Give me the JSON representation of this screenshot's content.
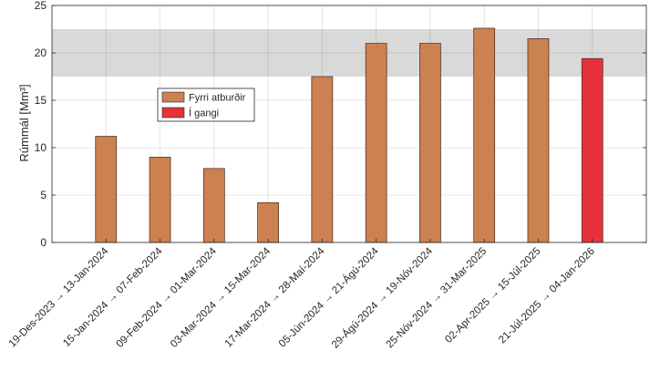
{
  "chart_data": {
    "type": "bar",
    "categories": [
      "19-Des-2023 → 13-Jan-2024",
      "15-Jan-2024 → 07-Feb-2024",
      "09-Feb-2024 → 01-Mar-2024",
      "03-Mar-2024 → 15-Mar-2024",
      "17-Mar-2024 → 28-Maí-2024",
      "05-Jún-2024 → 21-Ágú-2024",
      "29-Ágú-2024 → 19-Nóv-2024",
      "25-Nóv-2024 → 31-Mar-2025",
      "02-Apr-2025 → 15-Júl-2025",
      "21-Júl-2025 → 04-Jan-2026"
    ],
    "series": [
      {
        "name": "Fyrri atburðir",
        "color": "#cc8150",
        "values": [
          11.2,
          9.0,
          7.8,
          4.2,
          17.5,
          21.0,
          21.0,
          22.6,
          21.5,
          null
        ]
      },
      {
        "name": "Í gangi",
        "color": "#e5323a",
        "values": [
          null,
          null,
          null,
          null,
          null,
          null,
          null,
          null,
          null,
          19.4
        ]
      }
    ],
    "shaded_band": {
      "from": 17.5,
      "to": 22.5,
      "color": "#d9d9d9"
    },
    "xlabel": "",
    "ylabel": "Rúmmál [Mm³]",
    "ylim": [
      0,
      25
    ],
    "yticks": [
      0,
      5,
      10,
      15,
      20,
      25
    ],
    "grid": true,
    "legend_position": "upper-left"
  }
}
